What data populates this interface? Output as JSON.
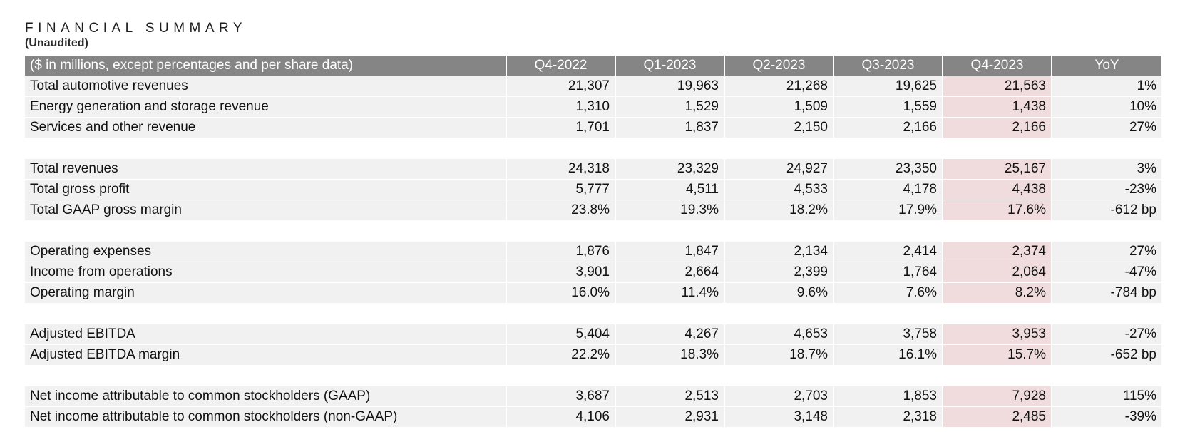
{
  "title": "FINANCIAL SUMMARY",
  "subtitle": "(Unaudited)",
  "table": {
    "header_label": "($ in millions, except percentages and per share data)",
    "columns": [
      "Q4-2022",
      "Q1-2023",
      "Q2-2023",
      "Q3-2023",
      "Q4-2023",
      "YoY"
    ],
    "highlight_column": "Q4-2023",
    "highlight_color": "#f0dcdc",
    "header_color": "#858585",
    "row_color": "#f1f1f1",
    "groups": [
      [
        {
          "label": "Total automotive revenues",
          "values": [
            "21,307",
            "19,963",
            "21,268",
            "19,625",
            "21,563",
            "1%"
          ]
        },
        {
          "label": "Energy generation and storage revenue",
          "values": [
            "1,310",
            "1,529",
            "1,509",
            "1,559",
            "1,438",
            "10%"
          ]
        },
        {
          "label": "Services and other revenue",
          "values": [
            "1,701",
            "1,837",
            "2,150",
            "2,166",
            "2,166",
            "27%"
          ]
        }
      ],
      [
        {
          "label": "Total revenues",
          "values": [
            "24,318",
            "23,329",
            "24,927",
            "23,350",
            "25,167",
            "3%"
          ]
        },
        {
          "label": "Total gross profit",
          "values": [
            "5,777",
            "4,511",
            "4,533",
            "4,178",
            "4,438",
            "-23%"
          ]
        },
        {
          "label": "Total GAAP gross margin",
          "values": [
            "23.8%",
            "19.3%",
            "18.2%",
            "17.9%",
            "17.6%",
            "-612 bp"
          ]
        }
      ],
      [
        {
          "label": "Operating expenses",
          "values": [
            "1,876",
            "1,847",
            "2,134",
            "2,414",
            "2,374",
            "27%"
          ]
        },
        {
          "label": "Income from operations",
          "values": [
            "3,901",
            "2,664",
            "2,399",
            "1,764",
            "2,064",
            "-47%"
          ]
        },
        {
          "label": "Operating margin",
          "values": [
            "16.0%",
            "11.4%",
            "9.6%",
            "7.6%",
            "8.2%",
            "-784 bp"
          ]
        }
      ],
      [
        {
          "label": "Adjusted EBITDA",
          "values": [
            "5,404",
            "4,267",
            "4,653",
            "3,758",
            "3,953",
            "-27%"
          ]
        },
        {
          "label": "Adjusted EBITDA margin",
          "values": [
            "22.2%",
            "18.3%",
            "18.7%",
            "16.1%",
            "15.7%",
            "-652 bp"
          ]
        }
      ],
      [
        {
          "label": "Net income attributable to common stockholders (GAAP)",
          "values": [
            "3,687",
            "2,513",
            "2,703",
            "1,853",
            "7,928",
            "115%"
          ]
        },
        {
          "label": "Net income attributable to common stockholders (non-GAAP)",
          "values": [
            "4,106",
            "2,931",
            "3,148",
            "2,318",
            "2,485",
            "-39%"
          ]
        }
      ]
    ]
  }
}
